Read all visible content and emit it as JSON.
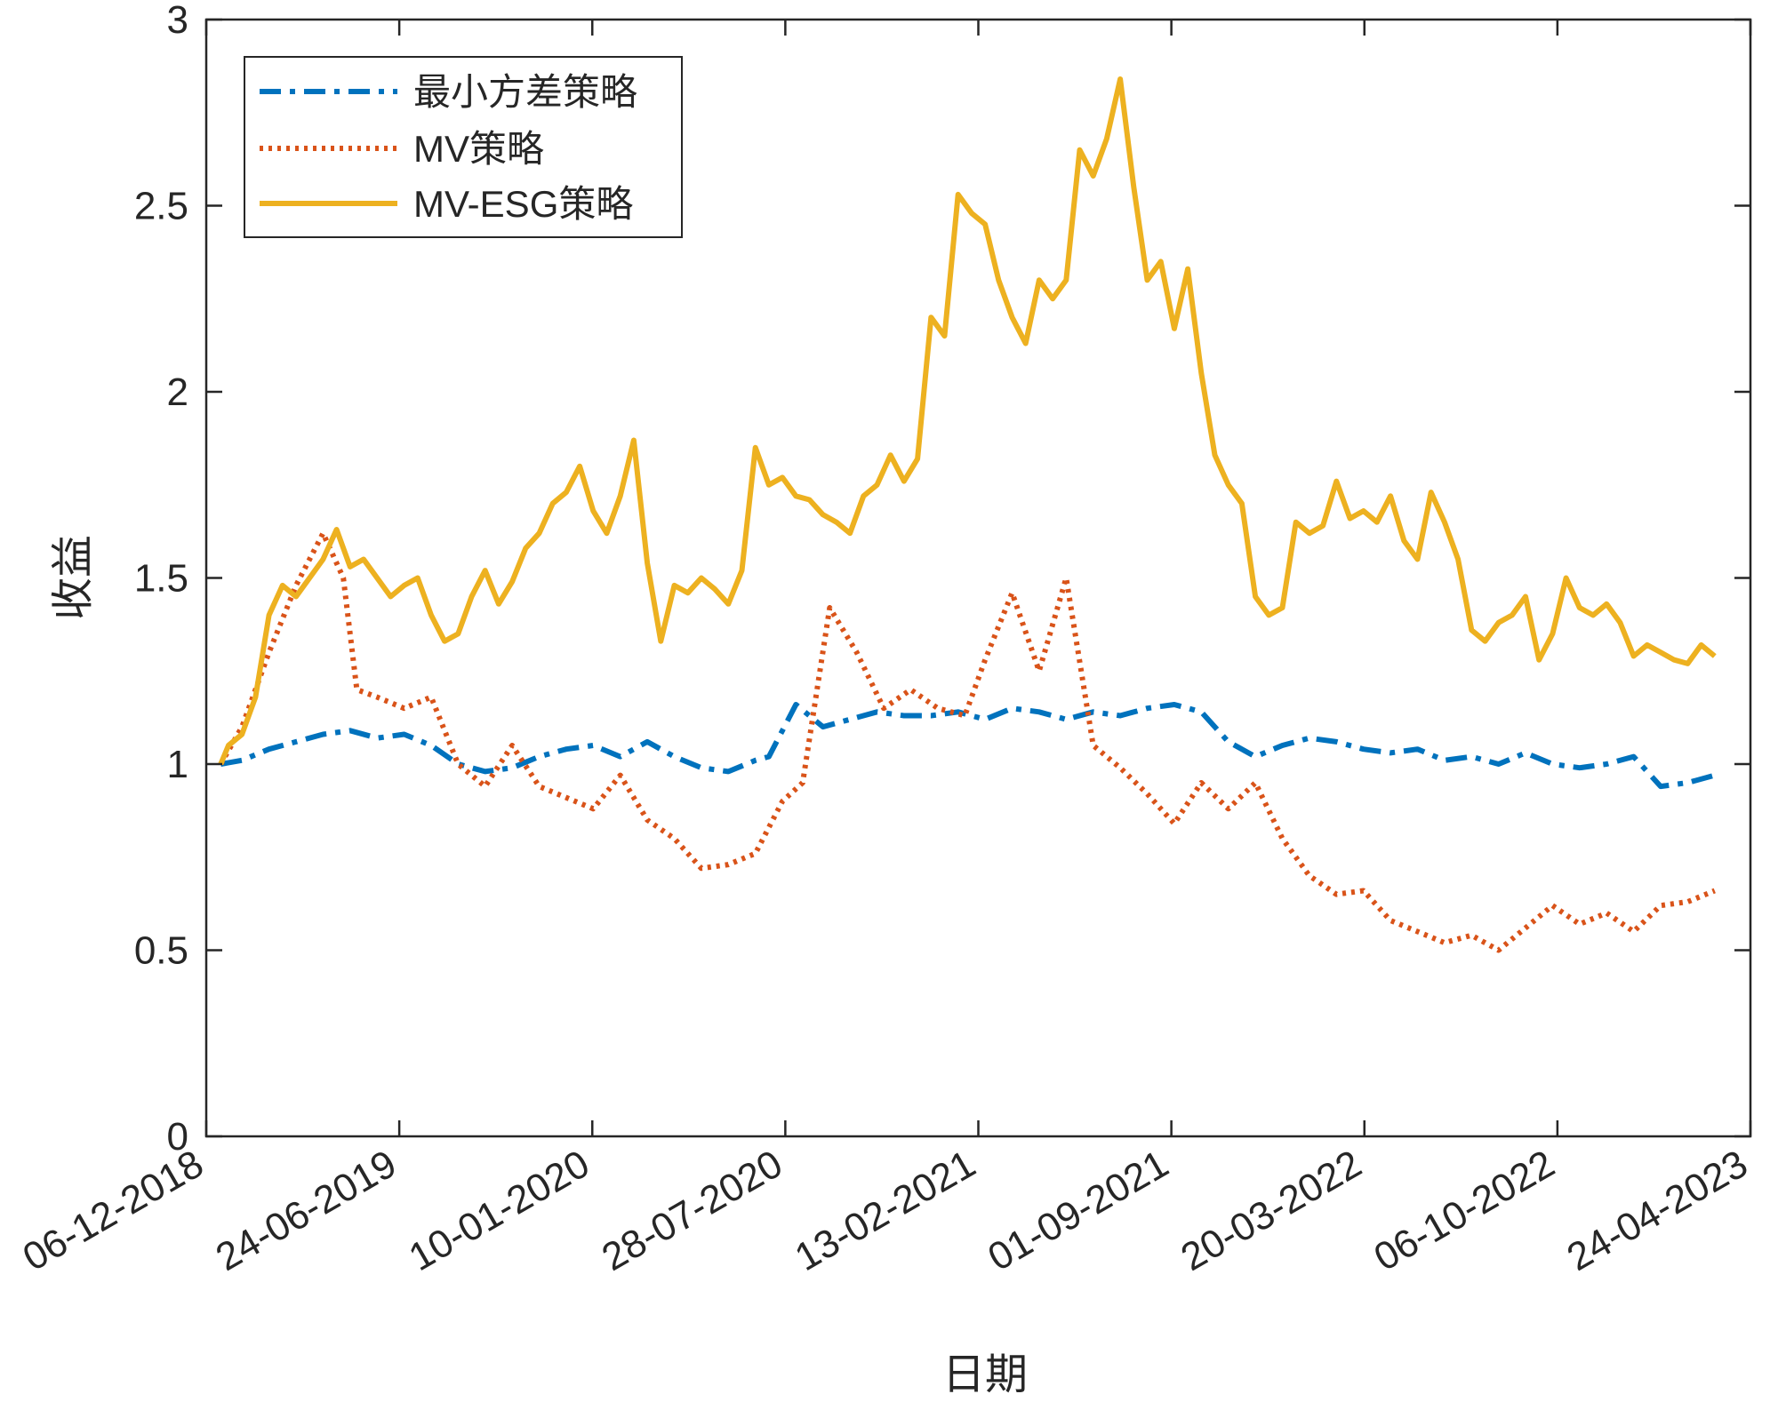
{
  "chart_data": {
    "type": "line",
    "title": "",
    "xlabel": "日期",
    "ylabel": "收益",
    "ylim": [
      0,
      3
    ],
    "yticks": [
      "0",
      "0.5",
      "1",
      "1.5",
      "2",
      "2.5",
      "3"
    ],
    "xticks": [
      "06-12-2018",
      "24-06-2019",
      "10-01-2020",
      "28-07-2020",
      "13-02-2021",
      "01-09-2021",
      "20-03-2022",
      "06-10-2022",
      "24-04-2023"
    ],
    "xlim": [
      "06-12-2018",
      "24-04-2023"
    ],
    "grid": false,
    "legend_position": "top-left",
    "series": [
      {
        "name": "最小方差策略",
        "color": "#0072BD",
        "style": "dashdot",
        "x": [
          "2018-12-21",
          "2019-01-12",
          "2019-02-09",
          "2019-03-09",
          "2019-04-06",
          "2019-05-04",
          "2019-06-01",
          "2019-06-29",
          "2019-07-27",
          "2019-08-24",
          "2019-09-21",
          "2019-10-19",
          "2019-11-16",
          "2019-12-14",
          "2020-01-11",
          "2020-02-08",
          "2020-03-07",
          "2020-04-04",
          "2020-05-02",
          "2020-05-30",
          "2020-06-27",
          "2020-07-11",
          "2020-08-08",
          "2020-09-05",
          "2020-10-03",
          "2020-10-31",
          "2020-11-28",
          "2020-12-26",
          "2021-01-23",
          "2021-02-20",
          "2021-03-20",
          "2021-04-17",
          "2021-05-15",
          "2021-06-12",
          "2021-07-10",
          "2021-08-07",
          "2021-09-04",
          "2021-10-02",
          "2021-10-30",
          "2021-11-27",
          "2021-12-25",
          "2022-01-22",
          "2022-02-19",
          "2022-03-19",
          "2022-04-16",
          "2022-05-14",
          "2022-06-11",
          "2022-07-09",
          "2022-08-06",
          "2022-09-03",
          "2022-10-01",
          "2022-10-29",
          "2022-11-26",
          "2022-12-24",
          "2023-01-21",
          "2023-02-18",
          "2023-03-18"
        ],
        "y": [
          1.0,
          1.01,
          1.04,
          1.06,
          1.08,
          1.09,
          1.07,
          1.08,
          1.05,
          1.0,
          0.98,
          0.99,
          1.02,
          1.04,
          1.05,
          1.02,
          1.06,
          1.02,
          0.99,
          0.98,
          1.01,
          1.02,
          1.16,
          1.1,
          1.12,
          1.14,
          1.13,
          1.13,
          1.14,
          1.12,
          1.15,
          1.14,
          1.12,
          1.14,
          1.13,
          1.15,
          1.16,
          1.14,
          1.06,
          1.02,
          1.05,
          1.07,
          1.06,
          1.04,
          1.03,
          1.04,
          1.01,
          1.02,
          1.0,
          1.03,
          1.0,
          0.99,
          1.0,
          1.02,
          0.94,
          0.95,
          0.97
        ]
      },
      {
        "name": "MV策略",
        "color": "#D95319",
        "style": "dotted",
        "x": [
          "2018-12-21",
          "2019-01-12",
          "2019-02-09",
          "2019-03-09",
          "2019-04-06",
          "2019-04-27",
          "2019-05-11",
          "2019-06-01",
          "2019-06-29",
          "2019-07-27",
          "2019-08-24",
          "2019-09-21",
          "2019-10-19",
          "2019-11-16",
          "2019-12-14",
          "2020-01-11",
          "2020-02-08",
          "2020-03-07",
          "2020-04-04",
          "2020-05-02",
          "2020-05-30",
          "2020-06-27",
          "2020-07-25",
          "2020-08-15",
          "2020-09-12",
          "2020-10-10",
          "2020-11-07",
          "2020-12-05",
          "2021-01-02",
          "2021-01-30",
          "2021-02-20",
          "2021-03-20",
          "2021-04-17",
          "2021-05-15",
          "2021-06-12",
          "2021-07-10",
          "2021-08-07",
          "2021-09-04",
          "2021-10-02",
          "2021-10-30",
          "2021-11-27",
          "2021-12-25",
          "2022-01-22",
          "2022-02-19",
          "2022-03-19",
          "2022-04-16",
          "2022-05-14",
          "2022-06-11",
          "2022-07-09",
          "2022-08-06",
          "2022-09-03",
          "2022-10-01",
          "2022-10-29",
          "2022-11-26",
          "2022-12-24",
          "2023-01-21",
          "2023-02-18",
          "2023-03-18"
        ],
        "y": [
          1.0,
          1.1,
          1.3,
          1.48,
          1.62,
          1.5,
          1.2,
          1.18,
          1.15,
          1.18,
          1.0,
          0.94,
          1.05,
          0.94,
          0.91,
          0.88,
          0.97,
          0.85,
          0.8,
          0.72,
          0.73,
          0.76,
          0.9,
          0.95,
          1.42,
          1.3,
          1.15,
          1.2,
          1.15,
          1.13,
          1.28,
          1.46,
          1.25,
          1.5,
          1.05,
          0.99,
          0.92,
          0.84,
          0.95,
          0.88,
          0.95,
          0.8,
          0.7,
          0.65,
          0.66,
          0.58,
          0.55,
          0.52,
          0.54,
          0.5,
          0.56,
          0.62,
          0.57,
          0.6,
          0.55,
          0.62,
          0.63,
          0.66
        ]
      },
      {
        "name": "MV-ESG策略",
        "color": "#EDB120",
        "style": "solid",
        "x": [
          "2018-12-21",
          "2018-12-29",
          "2019-01-12",
          "2019-01-26",
          "2019-02-09",
          "2019-02-23",
          "2019-03-09",
          "2019-03-23",
          "2019-04-06",
          "2019-04-20",
          "2019-05-04",
          "2019-05-18",
          "2019-06-01",
          "2019-06-15",
          "2019-06-29",
          "2019-07-13",
          "2019-07-27",
          "2019-08-10",
          "2019-08-24",
          "2019-09-07",
          "2019-09-21",
          "2019-10-05",
          "2019-10-19",
          "2019-11-02",
          "2019-11-16",
          "2019-11-30",
          "2019-12-14",
          "2019-12-28",
          "2020-01-11",
          "2020-01-25",
          "2020-02-08",
          "2020-02-22",
          "2020-03-07",
          "2020-03-21",
          "2020-04-04",
          "2020-04-18",
          "2020-05-02",
          "2020-05-16",
          "2020-05-30",
          "2020-06-13",
          "2020-06-27",
          "2020-07-11",
          "2020-07-25",
          "2020-08-08",
          "2020-08-22",
          "2020-09-05",
          "2020-09-19",
          "2020-10-03",
          "2020-10-17",
          "2020-10-31",
          "2020-11-14",
          "2020-11-28",
          "2020-12-12",
          "2020-12-26",
          "2021-01-09",
          "2021-01-23",
          "2021-02-06",
          "2021-02-20",
          "2021-03-06",
          "2021-03-20",
          "2021-04-03",
          "2021-04-17",
          "2021-05-01",
          "2021-05-15",
          "2021-05-29",
          "2021-06-12",
          "2021-06-26",
          "2021-07-10",
          "2021-07-24",
          "2021-08-07",
          "2021-08-21",
          "2021-09-04",
          "2021-09-18",
          "2021-10-02",
          "2021-10-16",
          "2021-10-30",
          "2021-11-13",
          "2021-11-27",
          "2021-12-11",
          "2021-12-25",
          "2022-01-08",
          "2022-01-22",
          "2022-02-05",
          "2022-02-19",
          "2022-03-05",
          "2022-03-19",
          "2022-04-02",
          "2022-04-16",
          "2022-04-30",
          "2022-05-14",
          "2022-05-28",
          "2022-06-11",
          "2022-06-25",
          "2022-07-09",
          "2022-07-23",
          "2022-08-06",
          "2022-08-20",
          "2022-09-03",
          "2022-09-17",
          "2022-10-01",
          "2022-10-15",
          "2022-10-29",
          "2022-11-12",
          "2022-11-26",
          "2022-12-10",
          "2022-12-24",
          "2023-01-07",
          "2023-01-21",
          "2023-02-04",
          "2023-02-18",
          "2023-03-04",
          "2023-03-18"
        ],
        "y": [
          1.0,
          1.05,
          1.08,
          1.18,
          1.4,
          1.48,
          1.45,
          1.5,
          1.55,
          1.63,
          1.53,
          1.55,
          1.5,
          1.45,
          1.48,
          1.5,
          1.4,
          1.33,
          1.35,
          1.45,
          1.52,
          1.43,
          1.49,
          1.58,
          1.62,
          1.7,
          1.73,
          1.8,
          1.68,
          1.62,
          1.72,
          1.87,
          1.54,
          1.33,
          1.48,
          1.46,
          1.5,
          1.47,
          1.43,
          1.52,
          1.85,
          1.75,
          1.77,
          1.72,
          1.71,
          1.67,
          1.65,
          1.62,
          1.72,
          1.75,
          1.83,
          1.76,
          1.82,
          2.2,
          2.15,
          2.53,
          2.48,
          2.45,
          2.3,
          2.2,
          2.13,
          2.3,
          2.25,
          2.3,
          2.65,
          2.58,
          2.68,
          2.84,
          2.55,
          2.3,
          2.35,
          2.17,
          2.33,
          2.05,
          1.83,
          1.75,
          1.7,
          1.45,
          1.4,
          1.42,
          1.65,
          1.62,
          1.64,
          1.76,
          1.66,
          1.68,
          1.65,
          1.72,
          1.6,
          1.55,
          1.73,
          1.65,
          1.55,
          1.36,
          1.33,
          1.38,
          1.4,
          1.45,
          1.28,
          1.35,
          1.5,
          1.42,
          1.4,
          1.43,
          1.38,
          1.29,
          1.32,
          1.3,
          1.28,
          1.27,
          1.32,
          1.29
        ]
      }
    ]
  }
}
